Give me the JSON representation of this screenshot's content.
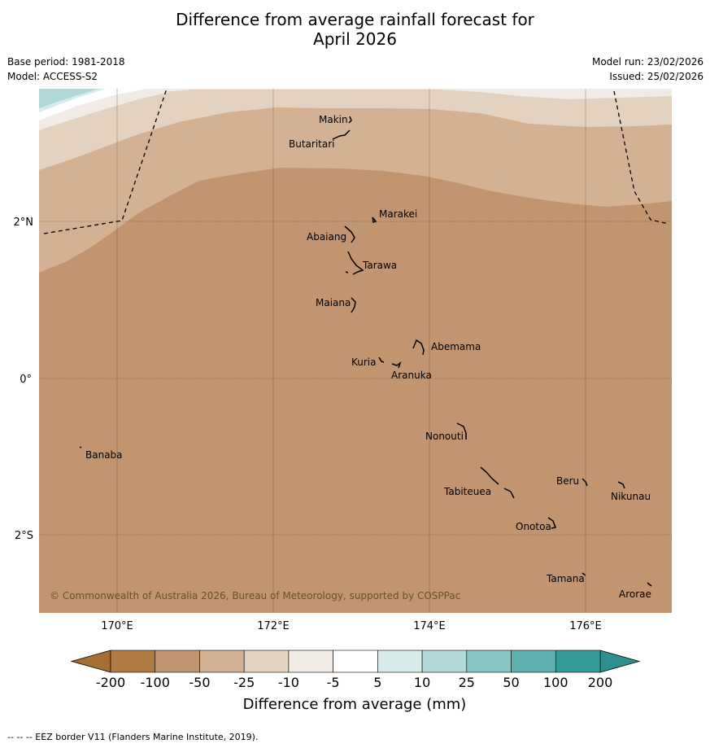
{
  "title_line1": "Difference from average rainfall forecast for",
  "title_line2": "April 2026",
  "base_period": "Base period: 1981-2018",
  "model": "Model: ACCESS-S2",
  "model_run": "Model run: 23/02/2026",
  "issued": "Issued: 25/02/2026",
  "copyright": "© Commonwealth of Australia 2026, Bureau of Meteorology, supported by COSPPac",
  "footnote": "--  --  -- EEZ border V11 (Flanders Marine Institute, 2019).",
  "map": {
    "lon_ticks": [
      "170°E",
      "172°E",
      "174°E",
      "176°E"
    ],
    "lat_ticks": [
      "2°N",
      "0°",
      "2°S"
    ],
    "places": [
      "Makin",
      "Butaritari",
      "Marakei",
      "Abaiang",
      "Tarawa",
      "Maiana",
      "Abemama",
      "Kuria",
      "Aranuka",
      "Nonouti",
      "Banaba",
      "Beru",
      "Nikunau",
      "Tabiteuea",
      "Onotoa",
      "Tamana",
      "Arorae"
    ]
  },
  "legend": {
    "title": "Difference from average (mm)",
    "ticks": [
      "-200",
      "-100",
      "-50",
      "-25",
      "-10",
      "-5",
      "5",
      "10",
      "25",
      "50",
      "100",
      "200"
    ],
    "colors": [
      "#b07a45",
      "#c09570",
      "#d2b292",
      "#e4d2c1",
      "#f1ebe6",
      "#ffffff",
      "#d8ebeb",
      "#b0d8d8",
      "#88c4c4",
      "#5eb0b0",
      "#359c9c"
    ],
    "under_color": "#a56e35",
    "over_color": "#2d8f8f"
  },
  "colors": {
    "grid": "#7a5a3a",
    "eez_line": "#000000"
  }
}
